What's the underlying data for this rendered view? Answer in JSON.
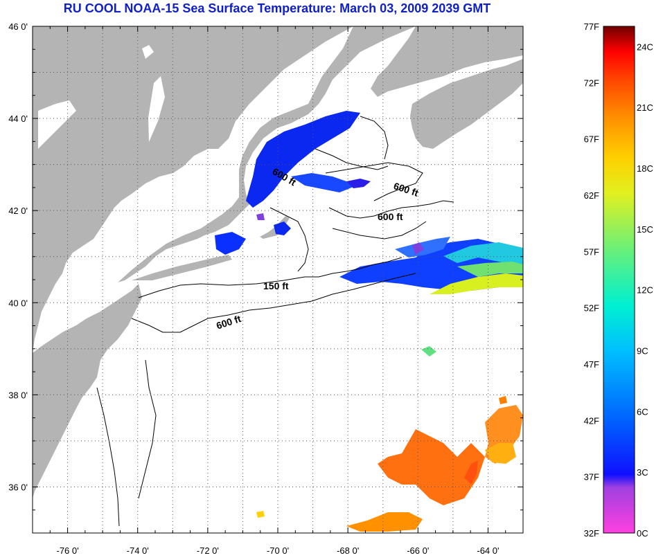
{
  "title": "RU COOL  NOAA-15  Sea Surface Temperature:  March 03, 2009 2039 GMT",
  "map": {
    "lat_labels": [
      "46 0'",
      "44 0'",
      "42 0'",
      "40 0'",
      "38 0'",
      "36 0'"
    ],
    "lon_labels": [
      "-76 0'",
      "-74 0'",
      "-72 0'",
      "-70 0'",
      "-68 0'",
      "-66 0'",
      "-64 0'"
    ],
    "lat_range": [
      35,
      46
    ],
    "lon_range": [
      -77,
      -63
    ],
    "colors": {
      "land": "#b4b4b4",
      "ocean": "#ffffff",
      "grid": "#555555"
    },
    "contour_labels": [
      "600 ft",
      "600 ft",
      "600 ft",
      "150 ft",
      "600 ft"
    ]
  },
  "colorbar": {
    "f_labels": [
      "77F",
      "72F",
      "67F",
      "62F",
      "57F",
      "52F",
      "47F",
      "42F",
      "37F",
      "32F"
    ],
    "c_labels": [
      "24C",
      "21C",
      "18C",
      "15C",
      "12C",
      "9C",
      "6C",
      "3C",
      "0C"
    ],
    "colors_bottom_to_top": [
      "#ff40e0",
      "#a040e0",
      "#1010ff",
      "#0060ff",
      "#00c0ff",
      "#00f0d0",
      "#60f080",
      "#e0f020",
      "#ffd000",
      "#ff9000",
      "#ff4000",
      "#ff0000",
      "#700000"
    ]
  }
}
